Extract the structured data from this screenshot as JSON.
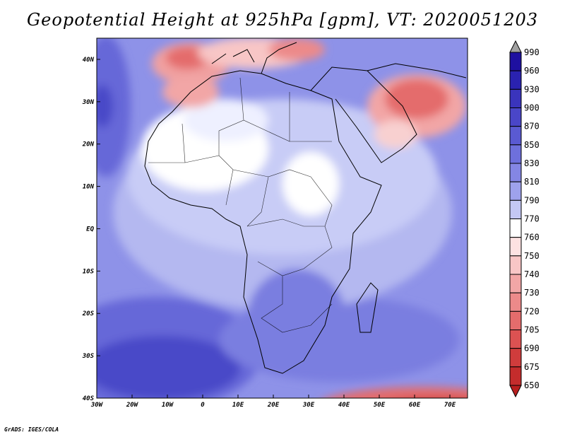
{
  "title": "Geopotential Height at 925hPa [gpm], VT: 2020051203",
  "credit": "GrADS: IGES/COLA",
  "map": {
    "lon_range": [
      -30,
      75
    ],
    "lat_range": [
      -40,
      45
    ],
    "x_ticks": [
      {
        "lon": -30,
        "label": "30W"
      },
      {
        "lon": -20,
        "label": "20W"
      },
      {
        "lon": -10,
        "label": "10W"
      },
      {
        "lon": 0,
        "label": "0"
      },
      {
        "lon": 10,
        "label": "10E"
      },
      {
        "lon": 20,
        "label": "20E"
      },
      {
        "lon": 30,
        "label": "30E"
      },
      {
        "lon": 40,
        "label": "40E"
      },
      {
        "lon": 50,
        "label": "50E"
      },
      {
        "lon": 60,
        "label": "60E"
      },
      {
        "lon": 70,
        "label": "70E"
      }
    ],
    "y_ticks": [
      {
        "lat": 40,
        "label": "40N"
      },
      {
        "lat": 30,
        "label": "30N"
      },
      {
        "lat": 20,
        "label": "20N"
      },
      {
        "lat": 10,
        "label": "10N"
      },
      {
        "lat": 0,
        "label": "EQ"
      },
      {
        "lat": -10,
        "label": "10S"
      },
      {
        "lat": -20,
        "label": "20S"
      },
      {
        "lat": -30,
        "label": "30S"
      },
      {
        "lat": -40,
        "label": "40S"
      }
    ]
  },
  "colorbar": {
    "levels": [
      "990",
      "960",
      "930",
      "900",
      "870",
      "850",
      "830",
      "810",
      "790",
      "770",
      "760",
      "750",
      "740",
      "730",
      "720",
      "705",
      "690",
      "675",
      "650"
    ],
    "colors": [
      "#a0a0a0",
      "#1e10a0",
      "#2a22b0",
      "#3a34bc",
      "#4a46c8",
      "#5a5ad2",
      "#6e70dc",
      "#8486e4",
      "#9ea2ec",
      "#c4c8f4",
      "#ffffff",
      "#fde2e2",
      "#f8c6c6",
      "#f2a6a6",
      "#ec8a8a",
      "#e46c6c",
      "#dc5252",
      "#d03c3c",
      "#c42c2c",
      "#b81e1e"
    ]
  }
}
